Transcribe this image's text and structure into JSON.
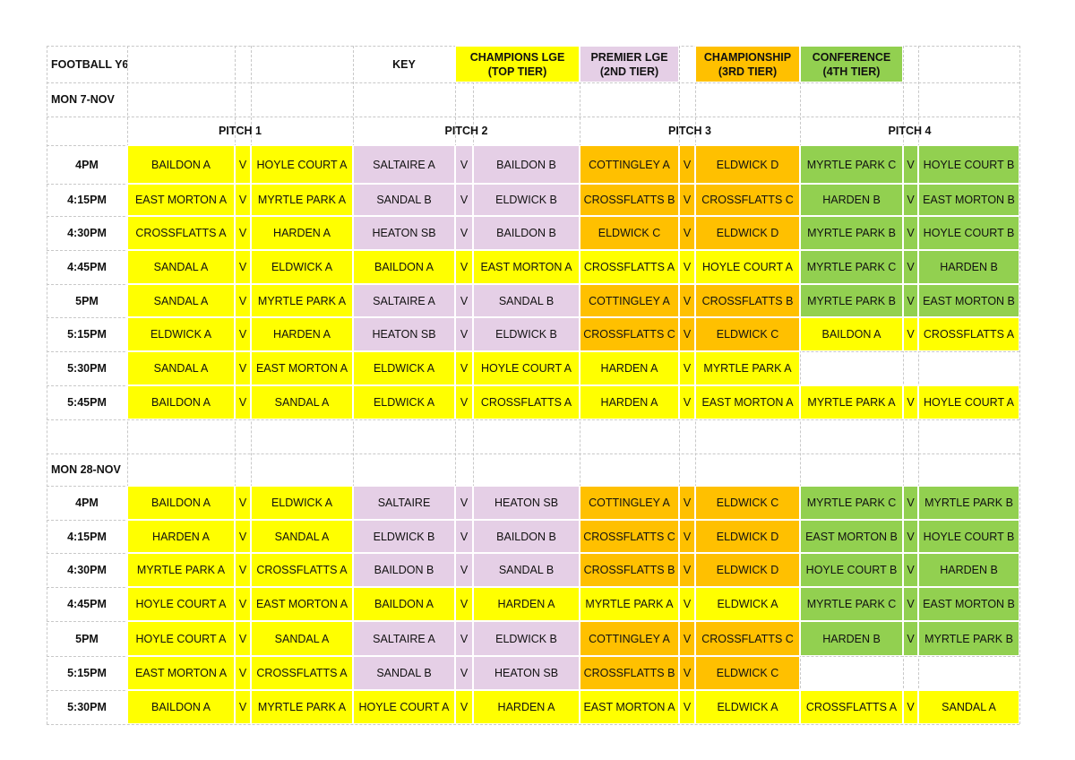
{
  "sheet": {
    "title": "FOOTBALL Y6",
    "key_label": "KEY",
    "key": [
      {
        "line1": "CHAMPIONS LGE",
        "line2": "(TOP TIER)",
        "color": "#ffff00"
      },
      {
        "line1": "PREMIER LGE",
        "line2": "(2ND TIER)",
        "color": "#e5cfe6"
      },
      {
        "line1": "CHAMPIONSHIP",
        "line2": "(3RD TIER)",
        "color": "#ffc000"
      },
      {
        "line1": "CONFERENCE",
        "line2": "(4TH TIER)",
        "color": "#92d050"
      }
    ],
    "pitches": [
      "PITCH 1",
      "PITCH 2",
      "PITCH 3",
      "PITCH 4"
    ],
    "vs_label": "V",
    "tier_colors": {
      "C": "#ffff00",
      "P": "#e5cfe6",
      "H": "#ffc000",
      "N": "#92d050"
    },
    "blocks": [
      {
        "date": "MON 7-NOV",
        "rows": [
          {
            "time": "4PM",
            "matches": [
              {
                "home": "BAILDON A",
                "away": "HOYLE COURT A",
                "tier": "C"
              },
              {
                "home": "SALTAIRE A",
                "away": "BAILDON B",
                "tier": "P"
              },
              {
                "home": "COTTINGLEY A",
                "away": "ELDWICK D",
                "tier": "H"
              },
              {
                "home": "MYRTLE PARK C",
                "away": "HOYLE COURT B",
                "tier": "N"
              }
            ]
          },
          {
            "time": "4:15PM",
            "matches": [
              {
                "home": "EAST MORTON A",
                "away": "MYRTLE PARK A",
                "tier": "C"
              },
              {
                "home": "SANDAL B",
                "away": "ELDWICK B",
                "tier": "P"
              },
              {
                "home": "CROSSFLATTS B",
                "away": "CROSSFLATTS C",
                "tier": "H"
              },
              {
                "home": "HARDEN B",
                "away": "EAST MORTON B",
                "tier": "N"
              }
            ]
          },
          {
            "time": "4:30PM",
            "matches": [
              {
                "home": "CROSSFLATTS A",
                "away": "HARDEN A",
                "tier": "C"
              },
              {
                "home": "HEATON SB",
                "away": "BAILDON B",
                "tier": "P"
              },
              {
                "home": "ELDWICK C",
                "away": "ELDWICK D",
                "tier": "H"
              },
              {
                "home": "MYRTLE PARK B",
                "away": "HOYLE COURT B",
                "tier": "N"
              }
            ]
          },
          {
            "time": "4:45PM",
            "matches": [
              {
                "home": "SANDAL A",
                "away": "ELDWICK A",
                "tier": "C"
              },
              {
                "home": "BAILDON A",
                "away": "EAST MORTON A",
                "tier": "C"
              },
              {
                "home": "CROSSFLATTS A",
                "away": "HOYLE COURT A",
                "tier": "C"
              },
              {
                "home": "MYRTLE PARK C",
                "away": "HARDEN B",
                "tier": "N"
              }
            ]
          },
          {
            "time": "5PM",
            "matches": [
              {
                "home": "SANDAL A",
                "away": "MYRTLE PARK A",
                "tier": "C"
              },
              {
                "home": "SALTAIRE A",
                "away": "SANDAL B",
                "tier": "P"
              },
              {
                "home": "COTTINGLEY A",
                "away": "CROSSFLATTS B",
                "tier": "H"
              },
              {
                "home": "MYRTLE PARK B",
                "away": "EAST MORTON B",
                "tier": "N"
              }
            ]
          },
          {
            "time": "5:15PM",
            "matches": [
              {
                "home": "ELDWICK A",
                "away": "HARDEN A",
                "tier": "C"
              },
              {
                "home": "HEATON SB",
                "away": "ELDWICK B",
                "tier": "P"
              },
              {
                "home": "CROSSFLATTS C",
                "away": "ELDWICK C",
                "tier": "H"
              },
              {
                "home": "BAILDON A",
                "away": "CROSSFLATTS A",
                "tier": "C"
              }
            ]
          },
          {
            "time": "5:30PM",
            "matches": [
              {
                "home": "SANDAL A",
                "away": "EAST MORTON A",
                "tier": "C"
              },
              {
                "home": "ELDWICK A",
                "away": "HOYLE COURT A",
                "tier": "C"
              },
              {
                "home": "HARDEN A",
                "away": "MYRTLE PARK A",
                "tier": "C"
              },
              null
            ]
          },
          {
            "time": "5:45PM",
            "matches": [
              {
                "home": "BAILDON A",
                "away": "SANDAL A",
                "tier": "C"
              },
              {
                "home": "ELDWICK A",
                "away": "CROSSFLATTS A",
                "tier": "C"
              },
              {
                "home": "HARDEN A",
                "away": "EAST MORTON A",
                "tier": "C"
              },
              {
                "home": "MYRTLE PARK A",
                "away": "HOYLE COURT A",
                "tier": "C"
              }
            ]
          }
        ]
      },
      {
        "date": "MON 28-NOV",
        "rows": [
          {
            "time": "4PM",
            "matches": [
              {
                "home": "BAILDON A",
                "away": "ELDWICK A",
                "tier": "C"
              },
              {
                "home": "SALTAIRE",
                "away": "HEATON SB",
                "tier": "P"
              },
              {
                "home": "COTTINGLEY A",
                "away": "ELDWICK C",
                "tier": "H"
              },
              {
                "home": "MYRTLE PARK C",
                "away": "MYRTLE PARK B",
                "tier": "N"
              }
            ]
          },
          {
            "time": "4:15PM",
            "matches": [
              {
                "home": "HARDEN A",
                "away": "SANDAL A",
                "tier": "C"
              },
              {
                "home": "ELDWICK B",
                "away": "BAILDON B",
                "tier": "P"
              },
              {
                "home": "CROSSFLATTS C",
                "away": "ELDWICK D",
                "tier": "H"
              },
              {
                "home": "EAST MORTON B",
                "away": "HOYLE COURT B",
                "tier": "N"
              }
            ]
          },
          {
            "time": "4:30PM",
            "matches": [
              {
                "home": "MYRTLE PARK A",
                "away": "CROSSFLATTS A",
                "tier": "C"
              },
              {
                "home": "BAILDON B",
                "away": "SANDAL B",
                "tier": "P"
              },
              {
                "home": "CROSSFLATTS B",
                "away": "ELDWICK D",
                "tier": "H"
              },
              {
                "home": "HOYLE COURT B",
                "away": "HARDEN B",
                "tier": "N"
              }
            ]
          },
          {
            "time": "4:45PM",
            "matches": [
              {
                "home": "HOYLE COURT A",
                "away": "EAST MORTON A",
                "tier": "C"
              },
              {
                "home": "BAILDON A",
                "away": "HARDEN A",
                "tier": "C"
              },
              {
                "home": "MYRTLE PARK A",
                "away": "ELDWICK A",
                "tier": "C"
              },
              {
                "home": "MYRTLE PARK C",
                "away": "EAST MORTON B",
                "tier": "N"
              }
            ]
          },
          {
            "time": "5PM",
            "matches": [
              {
                "home": "HOYLE COURT A",
                "away": "SANDAL A",
                "tier": "C"
              },
              {
                "home": "SALTAIRE A",
                "away": "ELDWICK B",
                "tier": "P"
              },
              {
                "home": "COTTINGLEY A",
                "away": "CROSSFLATTS C",
                "tier": "H"
              },
              {
                "home": "HARDEN B",
                "away": "MYRTLE PARK B",
                "tier": "N"
              }
            ]
          },
          {
            "time": "5:15PM",
            "matches": [
              {
                "home": "EAST MORTON A",
                "away": "CROSSFLATTS A",
                "tier": "C"
              },
              {
                "home": "SANDAL B",
                "away": "HEATON SB",
                "tier": "P"
              },
              {
                "home": "CROSSFLATTS B",
                "away": "ELDWICK C",
                "tier": "H"
              },
              null
            ]
          },
          {
            "time": "5:30PM",
            "matches": [
              {
                "home": "BAILDON A",
                "away": "MYRTLE PARK A",
                "tier": "C"
              },
              {
                "home": "HOYLE COURT A",
                "away": "HARDEN A",
                "tier": "C"
              },
              {
                "home": "EAST MORTON A",
                "away": "ELDWICK A",
                "tier": "C"
              },
              {
                "home": "CROSSFLATTS A",
                "away": "SANDAL A",
                "tier": "C"
              }
            ]
          }
        ]
      }
    ]
  }
}
